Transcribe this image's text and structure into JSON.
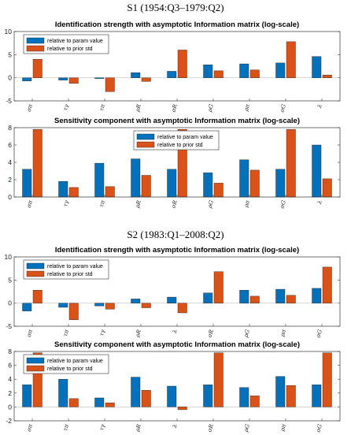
{
  "colors": {
    "series1": "#0072BD",
    "series2": "#D95319"
  },
  "sections": [
    {
      "title": "S1 (1954:Q3–1979:Q2)"
    },
    {
      "title": "S2 (1983:Q1–2008:Q2)"
    }
  ],
  "chart_data": [
    {
      "type": "bar",
      "title": "Identification strength with asymptotic Information matrix (log-scale)",
      "categories": [
        "σπ",
        "τγ",
        "τπ",
        "ρR",
        "σR",
        "ρG",
        "ρπ",
        "σG",
        "λ"
      ],
      "series": [
        {
          "name": "relative to param value",
          "values": [
            -0.7,
            -0.5,
            -0.2,
            1.1,
            1.4,
            2.8,
            3.0,
            3.2,
            4.6
          ]
        },
        {
          "name": "relative to prior std",
          "values": [
            4.0,
            -1.2,
            -3.0,
            -0.8,
            6.0,
            1.5,
            1.7,
            7.8,
            0.6
          ]
        }
      ],
      "ylim": [
        -5,
        10
      ],
      "yticks": [
        -5,
        0,
        5,
        10
      ],
      "legend": "top-left"
    },
    {
      "type": "bar",
      "title": "Sensitivity component with asymptotic Information matrix (log-scale)",
      "categories": [
        "σπ",
        "τγ",
        "τπ",
        "ρR",
        "σR",
        "ρG",
        "ρπ",
        "σG",
        "λ"
      ],
      "series": [
        {
          "name": "relative to param value",
          "values": [
            3.2,
            1.8,
            3.9,
            4.4,
            3.2,
            2.8,
            4.3,
            3.2,
            6.0
          ]
        },
        {
          "name": "relative to prior std",
          "values": [
            7.8,
            1.1,
            1.2,
            2.5,
            7.8,
            1.6,
            3.1,
            7.8,
            2.1
          ]
        }
      ],
      "ylim": [
        0,
        8
      ],
      "yticks": [
        0,
        2,
        4,
        6,
        8
      ],
      "legend": "top-center"
    },
    {
      "type": "bar",
      "title": "Identification strength with asymptotic Information matrix (log-scale)",
      "categories": [
        "σπ",
        "τπ",
        "τγ",
        "ρR",
        "λ",
        "σR",
        "ρG",
        "ρπ",
        "σG"
      ],
      "series": [
        {
          "name": "relative to param value",
          "values": [
            -1.7,
            -0.9,
            -0.6,
            0.9,
            1.3,
            2.2,
            2.8,
            3.0,
            3.2
          ]
        },
        {
          "name": "relative to prior std",
          "values": [
            2.8,
            -3.6,
            -1.3,
            -1.0,
            -2.1,
            6.8,
            1.5,
            1.7,
            7.8
          ]
        }
      ],
      "ylim": [
        -5,
        10
      ],
      "yticks": [
        -5,
        0,
        5,
        10
      ],
      "legend": "top-left"
    },
    {
      "type": "bar",
      "title": "Sensitivity component with asymptotic Information matrix (log-scale)",
      "categories": [
        "σπ",
        "τπ",
        "τγ",
        "ρR",
        "λ",
        "σR",
        "ρG",
        "ρπ",
        "σG"
      ],
      "series": [
        {
          "name": "relative to param value",
          "values": [
            3.2,
            4.0,
            1.3,
            4.3,
            3.0,
            3.2,
            2.8,
            4.4,
            3.2
          ]
        },
        {
          "name": "relative to prior std",
          "values": [
            7.8,
            1.2,
            0.6,
            2.4,
            -0.4,
            7.8,
            1.6,
            3.1,
            7.8
          ]
        }
      ],
      "ylim": [
        -2,
        8
      ],
      "yticks": [
        -2,
        0,
        2,
        4,
        6,
        8
      ],
      "legend": "top-left"
    }
  ]
}
